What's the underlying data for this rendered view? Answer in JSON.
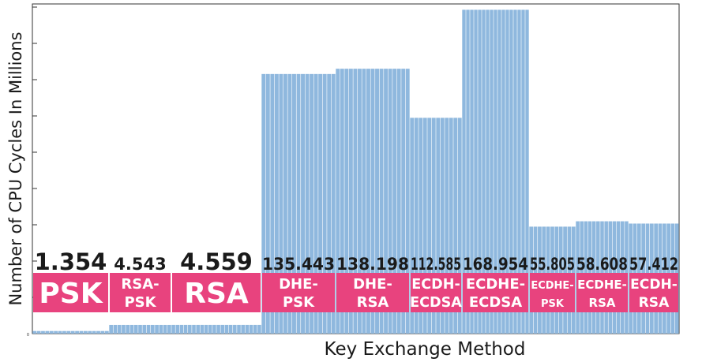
{
  "chart_data": {
    "type": "bar",
    "xlabel": "Key Exchange Method",
    "ylabel": "Number of CPU Cycles In Millions",
    "y_tick_label": "0",
    "ylim": [
      0,
      172
    ],
    "grid": false,
    "bar_color": "#8fb8de",
    "band_color": "#e8437e",
    "groups": [
      {
        "label": [
          "PSK"
        ],
        "value_text": "1.354",
        "value": 1.354,
        "bars": 18,
        "emphasis": "large"
      },
      {
        "label": [
          "RSA-",
          "PSK"
        ],
        "value_text": "4.543",
        "value": 4.543,
        "bars": 15,
        "emphasis": "normal"
      },
      {
        "label": [
          "RSA"
        ],
        "value_text": "4.559",
        "value": 4.559,
        "bars": 22,
        "emphasis": "large"
      },
      {
        "label": [
          "DHE-",
          "PSK"
        ],
        "value_text": "135.443",
        "value": 135.443,
        "bars": 17,
        "emphasis": "normal"
      },
      {
        "label": [
          "DHE-",
          "RSA"
        ],
        "value_text": "138.198",
        "value": 138.198,
        "bars": 17,
        "emphasis": "normal"
      },
      {
        "label": [
          "ECDH-",
          "ECDSA"
        ],
        "value_text": "112.585",
        "value": 112.585,
        "bars": 12,
        "emphasis": "normal"
      },
      {
        "label": [
          "ECDHE-",
          "ECDSA"
        ],
        "value_text": "168.954",
        "value": 168.954,
        "bars": 17,
        "emphasis": "normal"
      },
      {
        "label": [
          "ECDHE-",
          "PSK"
        ],
        "value_text": "55.805",
        "value": 55.805,
        "bars": 11,
        "emphasis": "normal"
      },
      {
        "label": [
          "ECDHE-",
          "RSA"
        ],
        "value_text": "58.608",
        "value": 58.608,
        "bars": 13,
        "emphasis": "normal"
      },
      {
        "label": [
          "ECDH-",
          "RSA"
        ],
        "value_text": "57.412",
        "value": 57.412,
        "bars": 12,
        "emphasis": "normal"
      }
    ]
  }
}
